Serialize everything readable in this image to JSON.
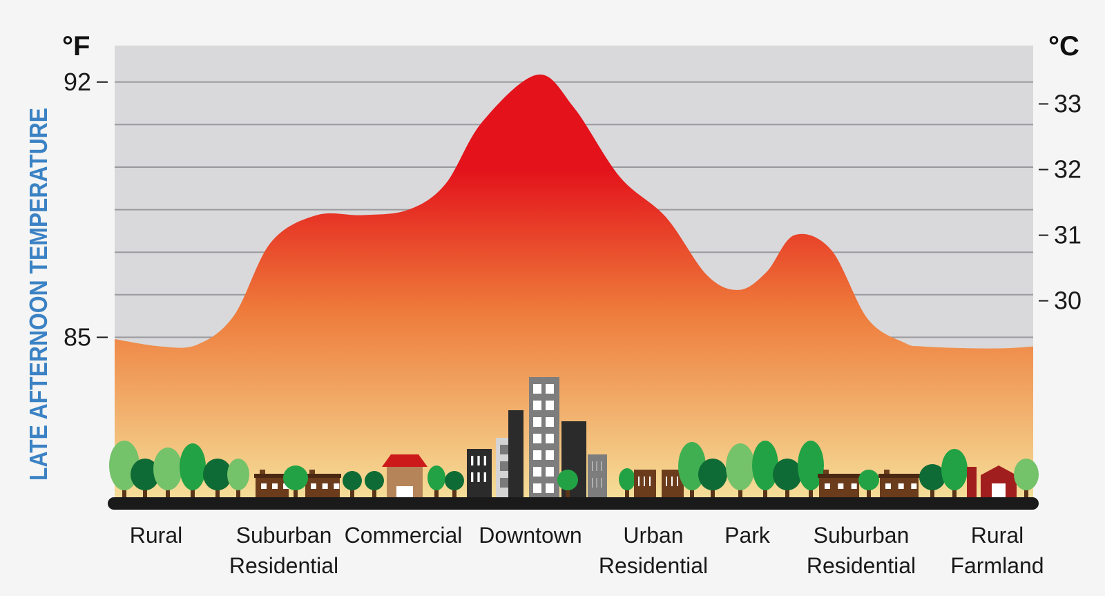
{
  "chart_data": {
    "type": "area",
    "title": "",
    "ylabel": "LATE AFTERNOON TEMPERATURE",
    "left_unit": "°F",
    "right_unit": "°C",
    "left_ticks": [
      "92",
      "85"
    ],
    "left_tick_values": [
      92,
      85
    ],
    "right_ticks": [
      "33",
      "32",
      "31",
      "30"
    ],
    "right_tick_values": [
      33,
      32,
      31,
      30
    ],
    "ylim_f": [
      80.5,
      93
    ],
    "grid": true,
    "x": [
      0,
      0.05,
      0.09,
      0.13,
      0.17,
      0.22,
      0.27,
      0.32,
      0.36,
      0.4,
      0.46,
      0.5,
      0.55,
      0.6,
      0.645,
      0.68,
      0.71,
      0.74,
      0.78,
      0.82,
      0.86,
      0.88,
      0.93,
      0.97,
      1.0
    ],
    "values": [
      84.95,
      84.75,
      84.8,
      85.6,
      87.6,
      88.35,
      88.35,
      88.5,
      89.2,
      90.9,
      92.2,
      91.3,
      89.4,
      88.3,
      86.7,
      86.3,
      86.8,
      87.8,
      87.4,
      85.5,
      84.85,
      84.75,
      84.7,
      84.7,
      84.75
    ],
    "categories": [
      {
        "lines": [
          "Rural"
        ]
      },
      {
        "lines": [
          "Suburban",
          "Residential"
        ]
      },
      {
        "lines": [
          "Commercial"
        ]
      },
      {
        "lines": [
          "Downtown"
        ]
      },
      {
        "lines": [
          "Urban",
          "Residential"
        ]
      },
      {
        "lines": [
          "Park"
        ]
      },
      {
        "lines": [
          "Suburban",
          "Residential"
        ]
      },
      {
        "lines": [
          "Rural",
          "Farmland"
        ]
      }
    ],
    "colors": {
      "plot_bg": "#d9d9db",
      "grid": "#9a9a9e",
      "area_top": "#e3121b",
      "area_mid": "#ee7a3a",
      "area_bottom": "#f5e09a",
      "ground": "#1a1a1a",
      "ylabel": "#3b82c4"
    }
  },
  "illustration": {
    "icons": [
      "tree-icon",
      "house-icon",
      "store-icon",
      "building-icon",
      "barn-icon"
    ]
  }
}
